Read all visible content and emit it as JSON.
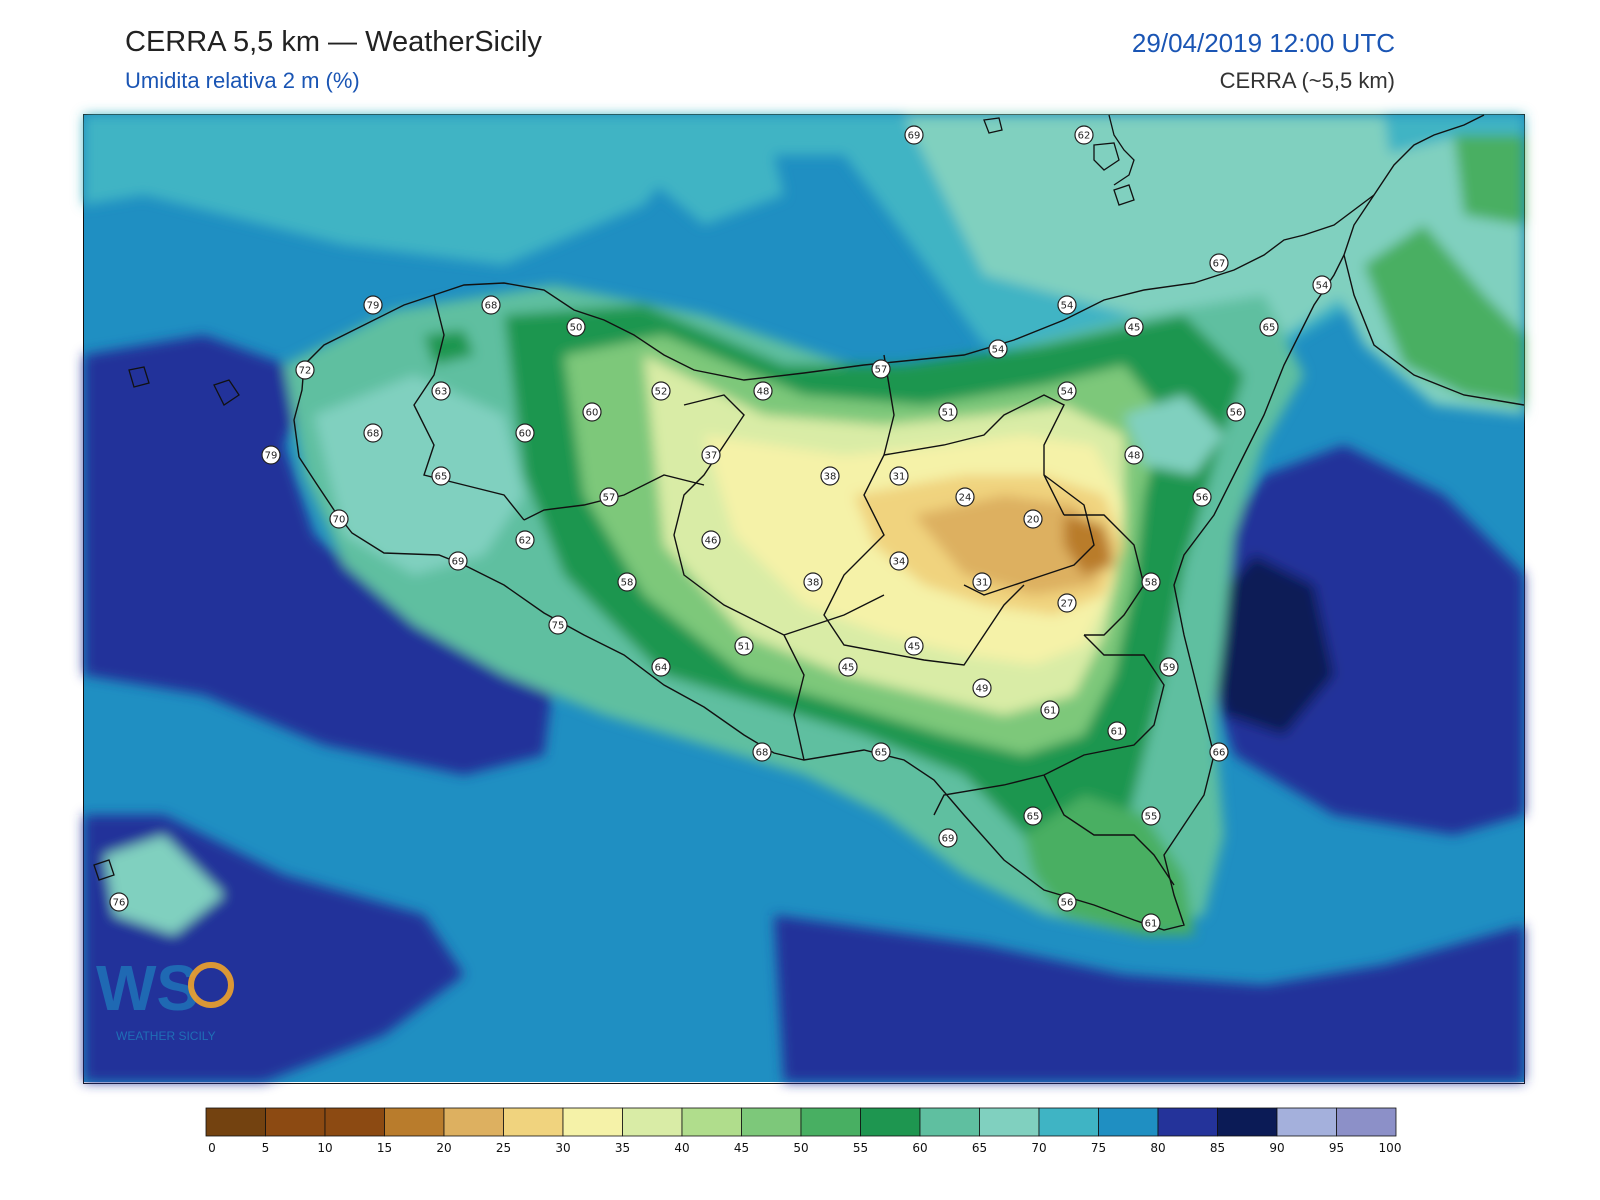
{
  "header": {
    "title": "CERRA 5,5 km — WeatherSicily",
    "subtitle": "Umidita relativa 2 m (%)",
    "datetime": "29/04/2019 12:00 UTC",
    "model": "CERRA (~5,5 km)"
  },
  "map": {
    "variable": "relative humidity 2 m",
    "stations": [
      {
        "value": "69"
      },
      {
        "value": "62"
      },
      {
        "value": "67"
      },
      {
        "value": "54"
      },
      {
        "value": "79"
      },
      {
        "value": "68"
      },
      {
        "value": "50"
      },
      {
        "value": "54"
      },
      {
        "value": "45"
      },
      {
        "value": "65"
      },
      {
        "value": "72"
      },
      {
        "value": "54"
      },
      {
        "value": "63"
      },
      {
        "value": "52"
      },
      {
        "value": "48"
      },
      {
        "value": "57"
      },
      {
        "value": "54"
      },
      {
        "value": "60"
      },
      {
        "value": "51"
      },
      {
        "value": "56"
      },
      {
        "value": "68"
      },
      {
        "value": "60"
      },
      {
        "value": "79"
      },
      {
        "value": "37"
      },
      {
        "value": "48"
      },
      {
        "value": "65"
      },
      {
        "value": "38"
      },
      {
        "value": "31"
      },
      {
        "value": "57"
      },
      {
        "value": "24"
      },
      {
        "value": "56"
      },
      {
        "value": "70"
      },
      {
        "value": "20"
      },
      {
        "value": "62"
      },
      {
        "value": "46"
      },
      {
        "value": "69"
      },
      {
        "value": "34"
      },
      {
        "value": "58"
      },
      {
        "value": "38"
      },
      {
        "value": "31"
      },
      {
        "value": "58"
      },
      {
        "value": "27"
      },
      {
        "value": "75"
      },
      {
        "value": "45"
      },
      {
        "value": "51"
      },
      {
        "value": "59"
      },
      {
        "value": "64"
      },
      {
        "value": "45"
      },
      {
        "value": "49"
      },
      {
        "value": "61"
      },
      {
        "value": "61"
      },
      {
        "value": "68"
      },
      {
        "value": "65"
      },
      {
        "value": "66"
      },
      {
        "value": "65"
      },
      {
        "value": "55"
      },
      {
        "value": "69"
      },
      {
        "value": "76"
      },
      {
        "value": "56"
      },
      {
        "value": "61"
      }
    ]
  },
  "colorbar": {
    "ticks": [
      "0",
      "5",
      "10",
      "15",
      "20",
      "25",
      "30",
      "35",
      "40",
      "45",
      "50",
      "55",
      "60",
      "65",
      "70",
      "75",
      "80",
      "85",
      "90",
      "95",
      "100"
    ],
    "colors": [
      "#734210",
      "#8c4a12",
      "#8c4a12",
      "#b97c2c",
      "#ddb060",
      "#f0d37e",
      "#f5f2a8",
      "#d9eca6",
      "#b0dd8c",
      "#7dc87a",
      "#48af62",
      "#1e9650",
      "#5fbfa0",
      "#80d0bf",
      "#3fb4c4",
      "#1f8fc2",
      "#24339a",
      "#0b1b56",
      "#a4b0dc",
      "#8c90c8"
    ],
    "logo_text": "WEATHER SICILY",
    "logo_mark": "WS"
  }
}
